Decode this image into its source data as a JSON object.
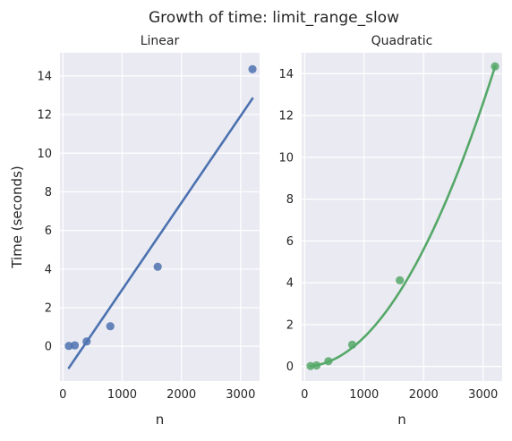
{
  "title": "Growth of time: limit_range_slow",
  "colors": {
    "background": "#eaeaf2",
    "grid": "#ffffff",
    "linear": "#4c72b0",
    "quadratic": "#55a868"
  },
  "chart_data": [
    {
      "type": "scatter",
      "title": "Linear",
      "xlabel": "n",
      "ylabel": "Time (seconds)",
      "xlim": [
        -50,
        3320
      ],
      "ylim": [
        -1.8,
        15.2
      ],
      "xticks": [
        0,
        1000,
        2000,
        3000
      ],
      "yticks": [
        0,
        2,
        4,
        6,
        8,
        10,
        12,
        14
      ],
      "grid": true,
      "series": [
        {
          "kind": "points",
          "x": [
            100,
            200,
            400,
            800,
            1600,
            3200
          ],
          "y": [
            0.02,
            0.05,
            0.25,
            1.04,
            4.12,
            14.35
          ]
        },
        {
          "kind": "fit-line",
          "fit": "linear",
          "coefficients": [
            0.0045,
            -1.57
          ],
          "x_range": [
            100,
            3200
          ]
        }
      ]
    },
    {
      "type": "scatter",
      "title": "Quadratic",
      "xlabel": "n",
      "ylabel": "",
      "xlim": [
        -50,
        3320
      ],
      "ylim": [
        -0.7,
        15.0
      ],
      "xticks": [
        0,
        1000,
        2000,
        3000
      ],
      "yticks": [
        0,
        2,
        4,
        6,
        8,
        10,
        12,
        14
      ],
      "grid": true,
      "series": [
        {
          "kind": "points",
          "x": [
            100,
            200,
            400,
            800,
            1600,
            3200
          ],
          "y": [
            0.02,
            0.05,
            0.25,
            1.04,
            4.12,
            14.35
          ]
        },
        {
          "kind": "fit-line",
          "fit": "quadratic",
          "coefficients": [
            1.4e-06,
            0.0,
            0.0
          ],
          "x_range": [
            100,
            3200
          ]
        }
      ]
    }
  ]
}
